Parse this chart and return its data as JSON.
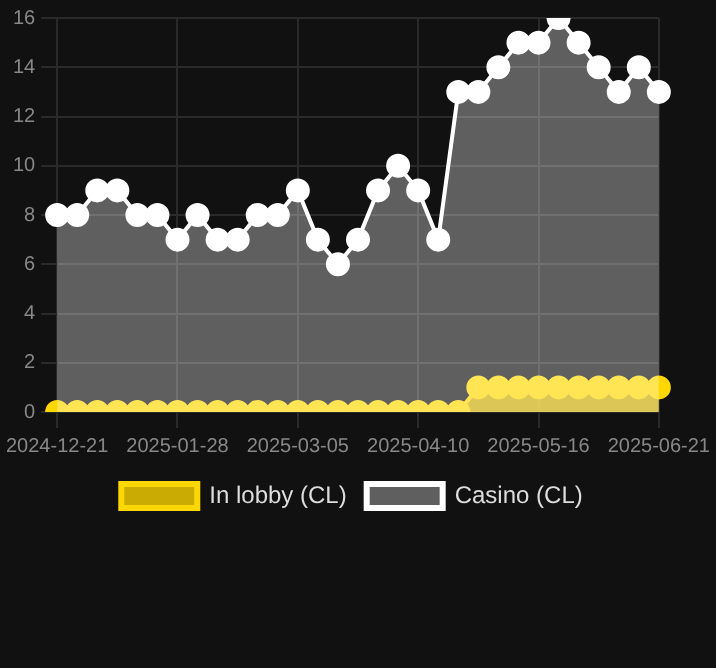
{
  "chart_data": {
    "type": "area",
    "categories": [
      "2024-12-21",
      null,
      null,
      null,
      null,
      null,
      "2025-01-28",
      null,
      null,
      null,
      null,
      null,
      "2025-03-05",
      null,
      null,
      null,
      null,
      null,
      "2025-04-10",
      null,
      null,
      null,
      null,
      null,
      "2025-05-16",
      null,
      null,
      null,
      null,
      null,
      "2025-06-21"
    ],
    "series": [
      {
        "name": "In lobby (CL)",
        "color": "#ffd700",
        "values": [
          0,
          0,
          0,
          0,
          0,
          0,
          0,
          0,
          0,
          0,
          0,
          0,
          0,
          0,
          0,
          0,
          0,
          0,
          0,
          0,
          0,
          1,
          1,
          1,
          1,
          1,
          1,
          1,
          1,
          1,
          1
        ]
      },
      {
        "name": "Casino (CL)",
        "color": "#ffffff",
        "values": [
          8,
          8,
          9,
          9,
          8,
          8,
          7,
          8,
          7,
          7,
          8,
          8,
          9,
          7,
          6,
          7,
          9,
          10,
          9,
          7,
          13,
          13,
          14,
          15,
          15,
          16,
          15,
          14,
          13,
          14,
          13
        ]
      }
    ],
    "ylim": [
      0,
      16
    ],
    "yticks": [
      0,
      2,
      4,
      6,
      8,
      10,
      12,
      14,
      16
    ],
    "grid": true,
    "legend": "bottom",
    "marker": "circle"
  }
}
